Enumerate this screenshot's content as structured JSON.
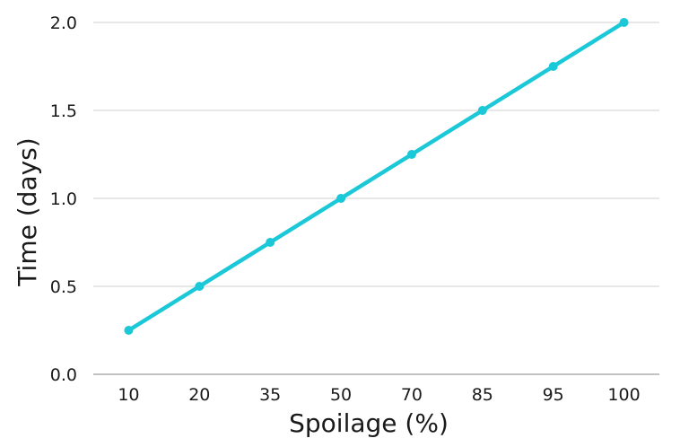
{
  "chart_data": {
    "type": "line",
    "title": "",
    "xlabel": "Spoilage (%)",
    "ylabel": "Time (days)",
    "categories": [
      "10",
      "20",
      "35",
      "50",
      "70",
      "85",
      "95",
      "100"
    ],
    "series": [
      {
        "values": [
          0.25,
          0.5,
          0.75,
          1.0,
          1.25,
          1.5,
          1.75,
          2.0
        ]
      }
    ],
    "y_ticks": [
      "0.0",
      "0.5",
      "1.0",
      "1.5",
      "2.0"
    ],
    "ylim": [
      0,
      2.0
    ],
    "grid": true,
    "legend": "none",
    "colors": {
      "series": "#1ac8d8",
      "grid": "#cfcfcf",
      "axis": "#9e9e9e"
    }
  }
}
